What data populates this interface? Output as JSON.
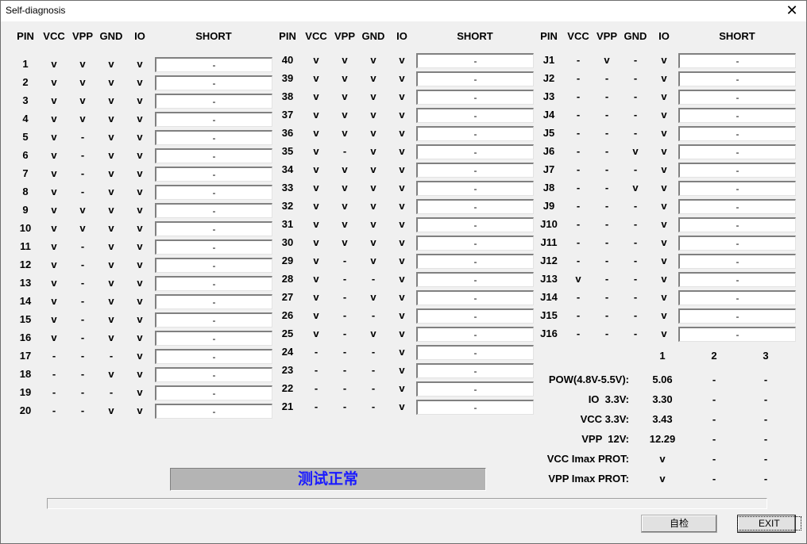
{
  "window": {
    "title": "Self-diagnosis",
    "close_icon": "close-icon"
  },
  "headers": [
    "PIN",
    "VCC",
    "VPP",
    "GND",
    "IO",
    "SHORT"
  ],
  "tables": [
    {
      "rows": [
        {
          "pin": "1",
          "vcc": "v",
          "vpp": "v",
          "gnd": "v",
          "io": "v",
          "short": "-"
        },
        {
          "pin": "2",
          "vcc": "v",
          "vpp": "v",
          "gnd": "v",
          "io": "v",
          "short": "-"
        },
        {
          "pin": "3",
          "vcc": "v",
          "vpp": "v",
          "gnd": "v",
          "io": "v",
          "short": "-"
        },
        {
          "pin": "4",
          "vcc": "v",
          "vpp": "v",
          "gnd": "v",
          "io": "v",
          "short": "-"
        },
        {
          "pin": "5",
          "vcc": "v",
          "vpp": "-",
          "gnd": "v",
          "io": "v",
          "short": "-"
        },
        {
          "pin": "6",
          "vcc": "v",
          "vpp": "-",
          "gnd": "v",
          "io": "v",
          "short": "-"
        },
        {
          "pin": "7",
          "vcc": "v",
          "vpp": "-",
          "gnd": "v",
          "io": "v",
          "short": "-"
        },
        {
          "pin": "8",
          "vcc": "v",
          "vpp": "-",
          "gnd": "v",
          "io": "v",
          "short": "-"
        },
        {
          "pin": "9",
          "vcc": "v",
          "vpp": "v",
          "gnd": "v",
          "io": "v",
          "short": "-"
        },
        {
          "pin": "10",
          "vcc": "v",
          "vpp": "v",
          "gnd": "v",
          "io": "v",
          "short": "-"
        },
        {
          "pin": "11",
          "vcc": "v",
          "vpp": "-",
          "gnd": "v",
          "io": "v",
          "short": "-"
        },
        {
          "pin": "12",
          "vcc": "v",
          "vpp": "-",
          "gnd": "v",
          "io": "v",
          "short": "-"
        },
        {
          "pin": "13",
          "vcc": "v",
          "vpp": "-",
          "gnd": "v",
          "io": "v",
          "short": "-"
        },
        {
          "pin": "14",
          "vcc": "v",
          "vpp": "-",
          "gnd": "v",
          "io": "v",
          "short": "-"
        },
        {
          "pin": "15",
          "vcc": "v",
          "vpp": "-",
          "gnd": "v",
          "io": "v",
          "short": "-"
        },
        {
          "pin": "16",
          "vcc": "v",
          "vpp": "-",
          "gnd": "v",
          "io": "v",
          "short": "-"
        },
        {
          "pin": "17",
          "vcc": "-",
          "vpp": "-",
          "gnd": "-",
          "io": "v",
          "short": "-"
        },
        {
          "pin": "18",
          "vcc": "-",
          "vpp": "-",
          "gnd": "v",
          "io": "v",
          "short": "-"
        },
        {
          "pin": "19",
          "vcc": "-",
          "vpp": "-",
          "gnd": "-",
          "io": "v",
          "short": "-"
        },
        {
          "pin": "20",
          "vcc": "-",
          "vpp": "-",
          "gnd": "v",
          "io": "v",
          "short": "-"
        }
      ]
    },
    {
      "rows": [
        {
          "pin": "40",
          "vcc": "v",
          "vpp": "v",
          "gnd": "v",
          "io": "v",
          "short": "-"
        },
        {
          "pin": "39",
          "vcc": "v",
          "vpp": "v",
          "gnd": "v",
          "io": "v",
          "short": "-"
        },
        {
          "pin": "38",
          "vcc": "v",
          "vpp": "v",
          "gnd": "v",
          "io": "v",
          "short": "-"
        },
        {
          "pin": "37",
          "vcc": "v",
          "vpp": "v",
          "gnd": "v",
          "io": "v",
          "short": "-"
        },
        {
          "pin": "36",
          "vcc": "v",
          "vpp": "v",
          "gnd": "v",
          "io": "v",
          "short": "-"
        },
        {
          "pin": "35",
          "vcc": "v",
          "vpp": "-",
          "gnd": "v",
          "io": "v",
          "short": "-"
        },
        {
          "pin": "34",
          "vcc": "v",
          "vpp": "v",
          "gnd": "v",
          "io": "v",
          "short": "-"
        },
        {
          "pin": "33",
          "vcc": "v",
          "vpp": "v",
          "gnd": "v",
          "io": "v",
          "short": "-"
        },
        {
          "pin": "32",
          "vcc": "v",
          "vpp": "v",
          "gnd": "v",
          "io": "v",
          "short": "-"
        },
        {
          "pin": "31",
          "vcc": "v",
          "vpp": "v",
          "gnd": "v",
          "io": "v",
          "short": "-"
        },
        {
          "pin": "30",
          "vcc": "v",
          "vpp": "v",
          "gnd": "v",
          "io": "v",
          "short": "-"
        },
        {
          "pin": "29",
          "vcc": "v",
          "vpp": "-",
          "gnd": "v",
          "io": "v",
          "short": "-"
        },
        {
          "pin": "28",
          "vcc": "v",
          "vpp": "-",
          "gnd": "-",
          "io": "v",
          "short": "-"
        },
        {
          "pin": "27",
          "vcc": "v",
          "vpp": "-",
          "gnd": "v",
          "io": "v",
          "short": "-"
        },
        {
          "pin": "26",
          "vcc": "v",
          "vpp": "-",
          "gnd": "-",
          "io": "v",
          "short": "-"
        },
        {
          "pin": "25",
          "vcc": "v",
          "vpp": "-",
          "gnd": "v",
          "io": "v",
          "short": "-"
        },
        {
          "pin": "24",
          "vcc": "-",
          "vpp": "-",
          "gnd": "-",
          "io": "v",
          "short": "-"
        },
        {
          "pin": "23",
          "vcc": "-",
          "vpp": "-",
          "gnd": "-",
          "io": "v",
          "short": "-"
        },
        {
          "pin": "22",
          "vcc": "-",
          "vpp": "-",
          "gnd": "-",
          "io": "v",
          "short": "-"
        },
        {
          "pin": "21",
          "vcc": "-",
          "vpp": "-",
          "gnd": "-",
          "io": "v",
          "short": "-"
        }
      ]
    },
    {
      "rows": [
        {
          "pin": "J1",
          "vcc": "-",
          "vpp": "v",
          "gnd": "-",
          "io": "v",
          "short": "-"
        },
        {
          "pin": "J2",
          "vcc": "-",
          "vpp": "-",
          "gnd": "-",
          "io": "v",
          "short": "-"
        },
        {
          "pin": "J3",
          "vcc": "-",
          "vpp": "-",
          "gnd": "-",
          "io": "v",
          "short": "-"
        },
        {
          "pin": "J4",
          "vcc": "-",
          "vpp": "-",
          "gnd": "-",
          "io": "v",
          "short": "-"
        },
        {
          "pin": "J5",
          "vcc": "-",
          "vpp": "-",
          "gnd": "-",
          "io": "v",
          "short": "-"
        },
        {
          "pin": "J6",
          "vcc": "-",
          "vpp": "-",
          "gnd": "v",
          "io": "v",
          "short": "-"
        },
        {
          "pin": "J7",
          "vcc": "-",
          "vpp": "-",
          "gnd": "-",
          "io": "v",
          "short": "-"
        },
        {
          "pin": "J8",
          "vcc": "-",
          "vpp": "-",
          "gnd": "v",
          "io": "v",
          "short": "-"
        },
        {
          "pin": "J9",
          "vcc": "-",
          "vpp": "-",
          "gnd": "-",
          "io": "v",
          "short": "-"
        },
        {
          "pin": "J10",
          "vcc": "-",
          "vpp": "-",
          "gnd": "-",
          "io": "v",
          "short": "-"
        },
        {
          "pin": "J11",
          "vcc": "-",
          "vpp": "-",
          "gnd": "-",
          "io": "v",
          "short": "-"
        },
        {
          "pin": "J12",
          "vcc": "-",
          "vpp": "-",
          "gnd": "-",
          "io": "v",
          "short": "-"
        },
        {
          "pin": "J13",
          "vcc": "v",
          "vpp": "-",
          "gnd": "-",
          "io": "v",
          "short": "-"
        },
        {
          "pin": "J14",
          "vcc": "-",
          "vpp": "-",
          "gnd": "-",
          "io": "v",
          "short": "-"
        },
        {
          "pin": "J15",
          "vcc": "-",
          "vpp": "-",
          "gnd": "-",
          "io": "v",
          "short": "-"
        },
        {
          "pin": "J16",
          "vcc": "-",
          "vpp": "-",
          "gnd": "-",
          "io": "v",
          "short": "-"
        }
      ]
    }
  ],
  "power": {
    "columns": [
      "1",
      "2",
      "3"
    ],
    "rows": [
      {
        "label": "POW(4.8V-5.5V):",
        "values": [
          "5.06",
          "-",
          "-"
        ]
      },
      {
        "label": "IO  3.3V:",
        "values": [
          "3.30",
          "-",
          "-"
        ]
      },
      {
        "label": "VCC 3.3V:",
        "values": [
          "3.43",
          "-",
          "-"
        ]
      },
      {
        "label": "VPP  12V:",
        "values": [
          "12.29",
          "-",
          "-"
        ]
      },
      {
        "label": "VCC Imax PROT:",
        "values": [
          "v",
          "-",
          "-"
        ]
      },
      {
        "label": "VPP Imax PROT:",
        "values": [
          "v",
          "-",
          "-"
        ]
      }
    ]
  },
  "status": {
    "text": "测试正常",
    "color": "#1a1aff"
  },
  "progress": {
    "percent": 0
  },
  "buttons": {
    "self_check": "自检",
    "exit": "EXIT"
  }
}
